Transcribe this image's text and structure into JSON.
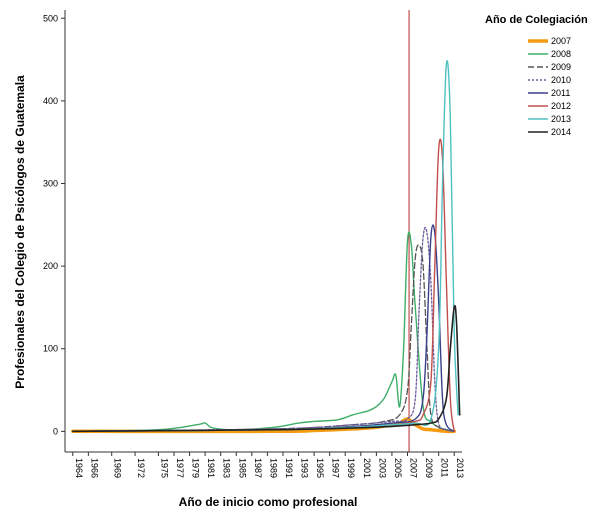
{
  "chart_data": {
    "type": "line",
    "title": "",
    "xlabel": "Año de inicio como profesional",
    "ylabel": "Profesionales del Colegio de Psicólogos de Guatemala",
    "xlim": [
      1963,
      2014
    ],
    "ylim": [
      -25,
      510
    ],
    "yticks": [
      0,
      100,
      200,
      300,
      400,
      500
    ],
    "xticks": [
      1964,
      1966,
      1969,
      1972,
      1975,
      1977,
      1979,
      1981,
      1983,
      1985,
      1987,
      1989,
      1991,
      1993,
      1995,
      1997,
      1999,
      2001,
      2003,
      2005,
      2007,
      2009,
      2011,
      2013
    ],
    "reference_line_x": 2007.2,
    "legend": {
      "title": "Año de Colegiación",
      "placement": "top-right"
    },
    "series": [
      {
        "name": "2007",
        "color": "#f39c12",
        "dash": "",
        "width": 3.5,
        "x": [
          1964,
          1990,
          1995,
          2000,
          2003,
          2005,
          2006,
          2007,
          2008,
          2009,
          2010,
          2011,
          2012,
          2013
        ],
        "y": [
          0,
          0,
          1,
          3,
          5,
          8,
          10,
          15,
          8,
          3,
          2,
          1,
          0,
          0
        ]
      },
      {
        "name": "2008",
        "color": "#3fae6a",
        "dash": "",
        "width": 1.4,
        "x": [
          1964,
          1975,
          1980,
          1981,
          1982,
          1985,
          1990,
          1993,
          1995,
          1998,
          2000,
          2002,
          2003,
          2004,
          2005,
          2005.5,
          2006,
          2006.5,
          2007,
          2007.5,
          2008,
          2009,
          2010,
          2011,
          2012,
          2013
        ],
        "y": [
          0,
          2,
          8,
          10,
          4,
          2,
          5,
          10,
          12,
          14,
          20,
          25,
          30,
          40,
          60,
          68,
          30,
          100,
          230,
          225,
          150,
          30,
          12,
          5,
          2,
          0
        ]
      },
      {
        "name": "2009",
        "color": "#555555",
        "dash": "6,3",
        "width": 1.3,
        "x": [
          1964,
          1990,
          2000,
          2004,
          2006,
          2007,
          2007.5,
          2008,
          2008.5,
          2009,
          2009.5,
          2010,
          2011,
          2012,
          2013
        ],
        "y": [
          0,
          3,
          8,
          12,
          20,
          50,
          130,
          210,
          225,
          200,
          100,
          20,
          5,
          2,
          0
        ]
      },
      {
        "name": "2010",
        "color": "#6a5a9a",
        "dash": "2,2",
        "width": 1.3,
        "x": [
          1964,
          1990,
          2000,
          2005,
          2007,
          2008,
          2008.5,
          2009,
          2009.5,
          2010,
          2010.5,
          2011,
          2012,
          2013
        ],
        "y": [
          0,
          3,
          8,
          12,
          15,
          40,
          150,
          235,
          240,
          180,
          60,
          10,
          2,
          0
        ]
      },
      {
        "name": "2011",
        "color": "#3a3f8a",
        "dash": "",
        "width": 1.4,
        "x": [
          1964,
          1990,
          2000,
          2005,
          2008,
          2009,
          2009.5,
          2010,
          2010.5,
          2011,
          2011.5,
          2012,
          2013
        ],
        "y": [
          0,
          2,
          6,
          10,
          15,
          40,
          120,
          235,
          240,
          160,
          40,
          8,
          0
        ]
      },
      {
        "name": "2012",
        "color": "#c0504d",
        "dash": "",
        "width": 1.4,
        "x": [
          1964,
          1990,
          2000,
          2005,
          2008,
          2009,
          2010,
          2010.5,
          2011,
          2011.5,
          2012,
          2012.5,
          2013
        ],
        "y": [
          0,
          2,
          5,
          8,
          12,
          20,
          60,
          200,
          340,
          330,
          180,
          40,
          0
        ]
      },
      {
        "name": "2013",
        "color": "#4fc2c0",
        "dash": "",
        "width": 1.4,
        "x": [
          1964,
          1990,
          2000,
          2005,
          2008,
          2010,
          2011,
          2011.5,
          2012,
          2012.5,
          2013,
          2013.5
        ],
        "y": [
          0,
          2,
          5,
          8,
          10,
          15,
          100,
          300,
          445,
          380,
          120,
          20
        ]
      },
      {
        "name": "2014",
        "color": "#222222",
        "dash": "",
        "width": 1.6,
        "x": [
          1964,
          1990,
          2000,
          2005,
          2008,
          2010,
          2011,
          2012,
          2012.5,
          2013,
          2013.3,
          2013.7
        ],
        "y": [
          0,
          2,
          4,
          6,
          8,
          10,
          15,
          40,
          100,
          150,
          130,
          20
        ]
      }
    ]
  }
}
